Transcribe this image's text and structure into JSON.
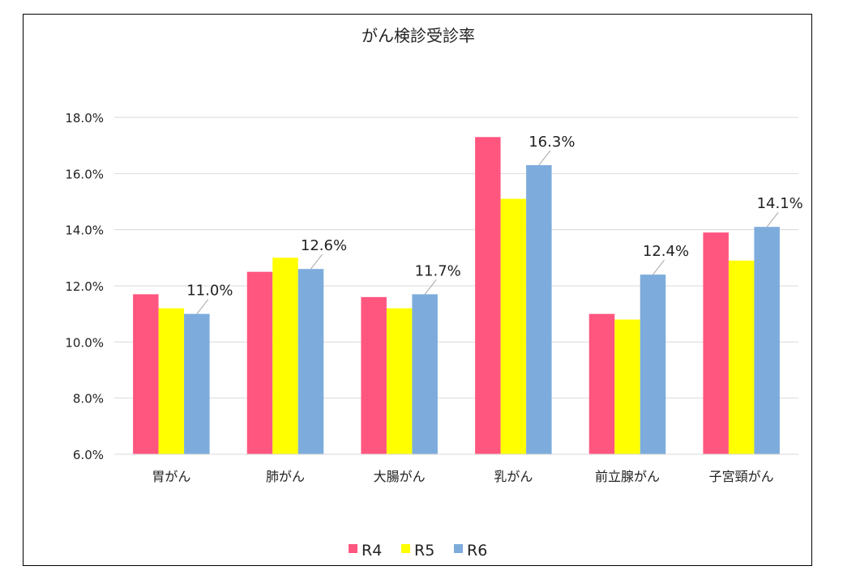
{
  "chart_data": {
    "type": "bar",
    "title": "がん検診受診率",
    "categories": [
      "胃がん",
      "肺がん",
      "大腸がん",
      "乳がん",
      "前立腺がん",
      "子宮頸がん"
    ],
    "series": [
      {
        "name": "R4",
        "color": "#FF5680",
        "values": [
          11.7,
          12.5,
          11.6,
          17.3,
          11.0,
          13.9
        ]
      },
      {
        "name": "R5",
        "color": "#FFFF00",
        "values": [
          11.2,
          13.0,
          11.2,
          15.1,
          10.8,
          12.9
        ]
      },
      {
        "name": "R6",
        "color": "#7DACDC",
        "values": [
          11.0,
          12.6,
          11.7,
          16.3,
          12.4,
          14.1
        ]
      }
    ],
    "data_labels": {
      "series": "R6",
      "labels": [
        "11.0%",
        "12.6%",
        "11.7%",
        "16.3%",
        "12.4%",
        "14.1%"
      ]
    },
    "ylim": [
      6,
      18
    ],
    "yticks": [
      6,
      8,
      10,
      12,
      14,
      16,
      18
    ],
    "ytick_labels": [
      "6.0%",
      "8.0%",
      "10.0%",
      "12.0%",
      "14.0%",
      "16.0%",
      "18.0%"
    ],
    "grid": true,
    "legend": "bottom"
  }
}
